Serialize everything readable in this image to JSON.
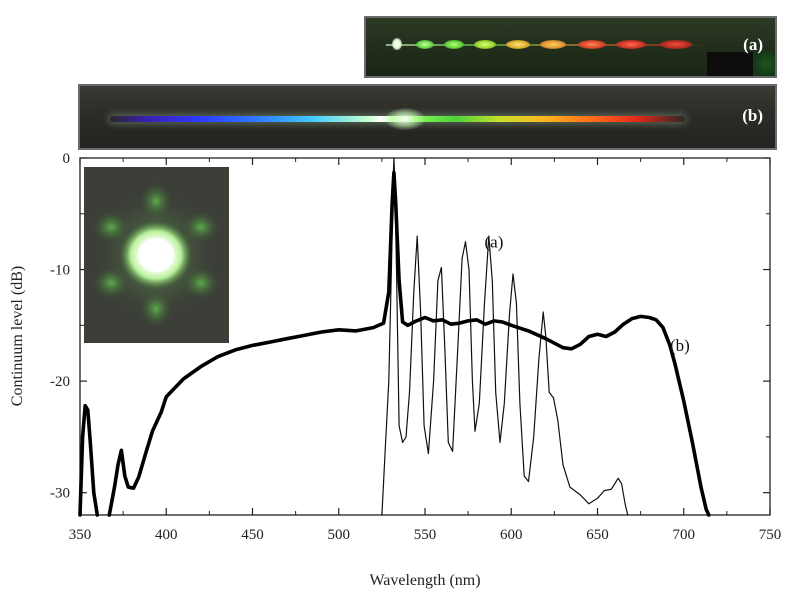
{
  "strips": {
    "a_label": "(a)",
    "b_label": "(b)"
  },
  "inset": {
    "icon": "six-lobe-fiber-core-spot"
  },
  "chart_data": {
    "type": "line",
    "title": "",
    "xlabel": "Wavelength (nm)",
    "ylabel": "Continuum level (dB)",
    "xlim": [
      350,
      750
    ],
    "ylim": [
      -32,
      0
    ],
    "xticks": [
      350,
      400,
      450,
      500,
      550,
      600,
      650,
      700,
      750
    ],
    "yticks": [
      0,
      -10,
      -20,
      -30
    ],
    "x_tick_labels": [
      "350",
      "400",
      "450",
      "500",
      "550",
      "600",
      "650",
      "700",
      "750"
    ],
    "y_tick_labels": [
      "0",
      "-10",
      "-20",
      "-30"
    ],
    "grid": false,
    "series": [
      {
        "name": "(a)",
        "color": "#111111",
        "style": "thin",
        "points": [
          [
            525,
            -32
          ],
          [
            527,
            -26
          ],
          [
            529,
            -20
          ],
          [
            530.5,
            -10
          ],
          [
            531.5,
            -2
          ],
          [
            532,
            0
          ],
          [
            532.5,
            -2
          ],
          [
            533.5,
            -10
          ],
          [
            535,
            -24
          ],
          [
            537,
            -25.5
          ],
          [
            539,
            -25
          ],
          [
            541,
            -21
          ],
          [
            543.5,
            -12
          ],
          [
            545.5,
            -7
          ],
          [
            547.5,
            -14
          ],
          [
            549.5,
            -24
          ],
          [
            552,
            -26.5
          ],
          [
            555,
            -20
          ],
          [
            557.5,
            -11
          ],
          [
            559.5,
            -9.8
          ],
          [
            561.5,
            -17
          ],
          [
            563.5,
            -25.5
          ],
          [
            566,
            -26.3
          ],
          [
            569,
            -17
          ],
          [
            571.5,
            -9
          ],
          [
            573.5,
            -7.5
          ],
          [
            575.5,
            -10
          ],
          [
            577.5,
            -20
          ],
          [
            579,
            -24.5
          ],
          [
            581.5,
            -22
          ],
          [
            584.5,
            -13
          ],
          [
            587,
            -7
          ],
          [
            589,
            -11
          ],
          [
            591,
            -21
          ],
          [
            593.5,
            -25.5
          ],
          [
            596,
            -22
          ],
          [
            599,
            -14
          ],
          [
            601,
            -10.4
          ],
          [
            603,
            -13
          ],
          [
            605,
            -22
          ],
          [
            607.5,
            -28.5
          ],
          [
            610,
            -29
          ],
          [
            613,
            -25
          ],
          [
            616,
            -18
          ],
          [
            618.5,
            -13.8
          ],
          [
            620,
            -16
          ],
          [
            622,
            -21
          ],
          [
            624.5,
            -21.5
          ],
          [
            627,
            -23.5
          ],
          [
            630,
            -27.5
          ],
          [
            634,
            -29.5
          ],
          [
            640,
            -30.2
          ],
          [
            645,
            -31
          ],
          [
            650,
            -30.5
          ],
          [
            654,
            -29.8
          ],
          [
            658,
            -29.7
          ],
          [
            662,
            -28.7
          ],
          [
            664,
            -29.2
          ],
          [
            666,
            -31
          ],
          [
            667.5,
            -32
          ]
        ]
      },
      {
        "name": "(b)",
        "color": "#000000",
        "style": "thick",
        "points": [
          [
            350,
            -32
          ],
          [
            351.5,
            -25
          ],
          [
            353,
            -22.2
          ],
          [
            354.5,
            -22.6
          ],
          [
            356,
            -25.5
          ],
          [
            358,
            -30
          ],
          [
            360,
            -32
          ],
          [
            367,
            -32
          ],
          [
            370,
            -29.5
          ],
          [
            372,
            -27.5
          ],
          [
            374,
            -26.2
          ],
          [
            376,
            -28.5
          ],
          [
            378,
            -29.5
          ],
          [
            381,
            -29.6
          ],
          [
            384,
            -28.6
          ],
          [
            388,
            -26.5
          ],
          [
            392,
            -24.5
          ],
          [
            397,
            -22.8
          ],
          [
            400,
            -21.4
          ],
          [
            410,
            -19.8
          ],
          [
            420,
            -18.7
          ],
          [
            430,
            -17.8
          ],
          [
            440,
            -17.2
          ],
          [
            450,
            -16.8
          ],
          [
            460,
            -16.5
          ],
          [
            470,
            -16.2
          ],
          [
            480,
            -15.9
          ],
          [
            490,
            -15.6
          ],
          [
            500,
            -15.4
          ],
          [
            510,
            -15.5
          ],
          [
            520,
            -15.2
          ],
          [
            526,
            -14.8
          ],
          [
            529,
            -12
          ],
          [
            531,
            -4
          ],
          [
            532,
            -1.3
          ],
          [
            533,
            -4
          ],
          [
            535,
            -11
          ],
          [
            537,
            -14.7
          ],
          [
            540,
            -15.0
          ],
          [
            545,
            -14.6
          ],
          [
            550,
            -14.3
          ],
          [
            555,
            -14.6
          ],
          [
            560,
            -14.5
          ],
          [
            565,
            -14.9
          ],
          [
            570,
            -14.8
          ],
          [
            575,
            -14.6
          ],
          [
            580,
            -14.5
          ],
          [
            585,
            -14.9
          ],
          [
            590,
            -14.6
          ],
          [
            595,
            -14.7
          ],
          [
            600,
            -15.0
          ],
          [
            610,
            -15.5
          ],
          [
            620,
            -16.2
          ],
          [
            630,
            -17.0
          ],
          [
            635,
            -17.1
          ],
          [
            640,
            -16.7
          ],
          [
            645,
            -16.0
          ],
          [
            650,
            -15.8
          ],
          [
            655,
            -16.0
          ],
          [
            660,
            -15.6
          ],
          [
            665,
            -14.9
          ],
          [
            670,
            -14.4
          ],
          [
            675,
            -14.2
          ],
          [
            680,
            -14.3
          ],
          [
            684,
            -14.5
          ],
          [
            688,
            -15.2
          ],
          [
            692,
            -16.8
          ],
          [
            695,
            -18.5
          ],
          [
            700,
            -21.8
          ],
          [
            705,
            -25.5
          ],
          [
            710,
            -29.5
          ],
          [
            713,
            -31.5
          ],
          [
            714.5,
            -32
          ]
        ]
      }
    ],
    "annotations": [
      {
        "text": "(a)",
        "x": 584.5,
        "y": -8
      },
      {
        "text": "(b)",
        "x": 692,
        "y": -17.3
      }
    ]
  }
}
